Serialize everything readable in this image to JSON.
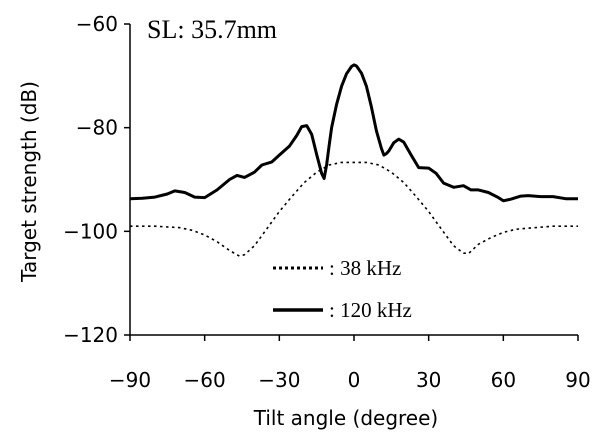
{
  "chart_data": {
    "type": "line",
    "annotation": "SL: 35.7mm",
    "xlabel": "Tilt angle (degree)",
    "ylabel": "Target strength (dB)",
    "xlim": [
      -90,
      90
    ],
    "ylim": [
      -120,
      -60
    ],
    "xticks": [
      -90,
      -60,
      -30,
      0,
      30,
      60,
      90
    ],
    "yticks": [
      -120,
      -100,
      -80,
      -60
    ],
    "grid": false,
    "legend_position": "lower-center",
    "series": [
      {
        "name": ": 38 kHz",
        "style": "dotted",
        "color": "#000000",
        "x": [
          -90,
          -80,
          -70,
          -65,
          -60,
          -55,
          -50,
          -46,
          -44,
          -40,
          -35,
          -30,
          -25,
          -20,
          -15,
          -10,
          -5,
          0,
          5,
          10,
          15,
          20,
          25,
          30,
          35,
          40,
          44,
          46,
          50,
          55,
          60,
          65,
          70,
          80,
          90
        ],
        "y": [
          -99,
          -99,
          -99.3,
          -99.8,
          -100.7,
          -102,
          -103.7,
          -104.8,
          -104.5,
          -102.8,
          -99.5,
          -96.2,
          -93.3,
          -90.6,
          -88.6,
          -87.2,
          -86.7,
          -86.7,
          -86.7,
          -87.2,
          -88.6,
          -90.6,
          -93.3,
          -96.2,
          -99.5,
          -102.8,
          -104.2,
          -104.3,
          -102.5,
          -101.2,
          -100.2,
          -99.6,
          -99.4,
          -99,
          -99
        ]
      },
      {
        "name": ": 120 kHz",
        "style": "solid",
        "color": "#000000",
        "x": [
          -90,
          -85,
          -80,
          -75,
          -72,
          -68,
          -64,
          -60,
          -55,
          -50,
          -47,
          -44,
          -40,
          -37,
          -33,
          -30,
          -26,
          -23,
          -21,
          -19,
          -17,
          -15,
          -13,
          -12,
          -11,
          -10,
          -9,
          -7,
          -5,
          -3,
          -1,
          0,
          1,
          3,
          5,
          7,
          9,
          11,
          12,
          13,
          14,
          16,
          18,
          20,
          23,
          26,
          30,
          33,
          36,
          40,
          44,
          47,
          50,
          54,
          58,
          60,
          63,
          67,
          70,
          75,
          80,
          85,
          90
        ],
        "y": [
          -93.7,
          -93.6,
          -93.4,
          -92.8,
          -92.2,
          -92.5,
          -93.4,
          -93.5,
          -92,
          -90,
          -89.2,
          -89.6,
          -88.6,
          -87.2,
          -86.6,
          -85.3,
          -83.6,
          -81.5,
          -79.8,
          -79.6,
          -81.3,
          -85.2,
          -88.8,
          -89.8,
          -87.2,
          -83.5,
          -80,
          -75.5,
          -72,
          -69.6,
          -68.2,
          -67.9,
          -68.1,
          -69.5,
          -72,
          -76,
          -80.6,
          -84,
          -85.3,
          -85,
          -84.5,
          -82.9,
          -82.2,
          -82.8,
          -85.3,
          -87.7,
          -87.8,
          -88.8,
          -90.7,
          -91.5,
          -91.2,
          -92,
          -92,
          -92.5,
          -93.5,
          -94.1,
          -93.8,
          -93.2,
          -93.1,
          -93.3,
          -93.3,
          -93.7,
          -93.7
        ]
      }
    ]
  }
}
